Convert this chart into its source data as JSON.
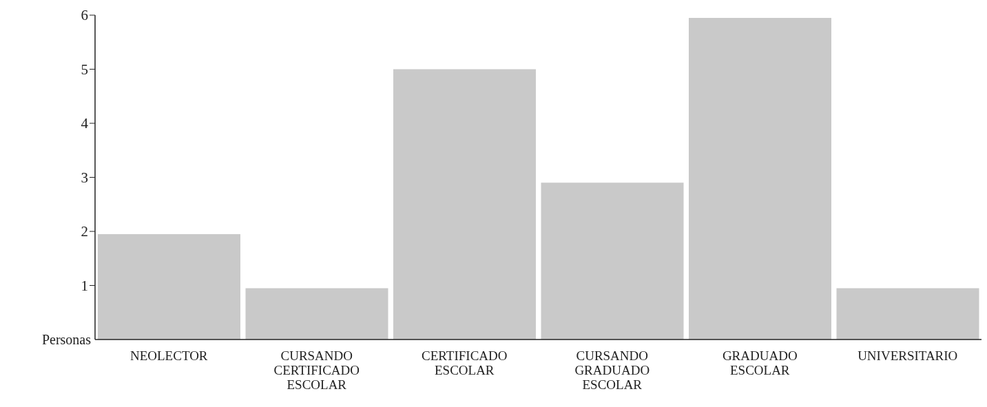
{
  "chart_data": {
    "type": "bar",
    "ylabel": "Personas",
    "categories": [
      "NEOLECTOR",
      "CURSANDO CERTIFICADO ESCOLAR",
      "CERTIFICADO ESCOLAR",
      "CURSANDO GRADUADO ESCOLAR",
      "GRADUADO ESCOLAR",
      "UNIVERSITARIO"
    ],
    "values": [
      1.95,
      0.95,
      5,
      2.9,
      5.95,
      0.95
    ],
    "color": "#c9c9c9",
    "ylim": [
      0,
      6
    ],
    "yticks": [
      1,
      2,
      3,
      4,
      5,
      6
    ]
  }
}
